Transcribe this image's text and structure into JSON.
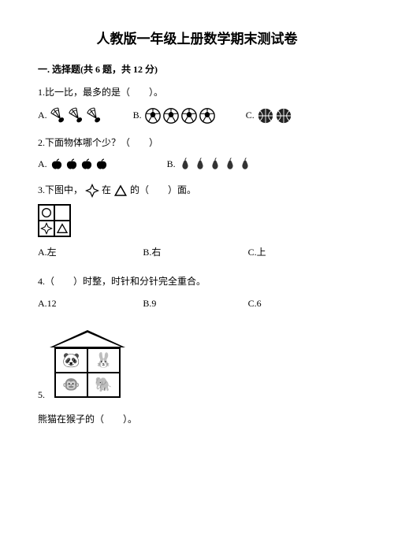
{
  "title": "人教版一年级上册数学期末测试卷",
  "section1": {
    "header": "一. 选择题(共 6 题，共 12 分)"
  },
  "q1": {
    "text": "1.比一比，最多的是（　　）。",
    "a_label": "A.",
    "b_label": "B.",
    "c_label": "C.",
    "shuttle_count": 3,
    "soccer_count": 4,
    "basketball_count": 2,
    "shuttle_color": "#000000",
    "soccer_fill": "#ffffff",
    "soccer_stroke": "#000000",
    "basketball_fill": "#222222",
    "icon_size": 22
  },
  "q2": {
    "text": "2.下面物体哪个少？（　　）",
    "a_label": "A.",
    "b_label": "B.",
    "apple_count": 4,
    "pear_count": 5,
    "apple_color": "#000000",
    "pear_color": "#333333",
    "icon_size": 18
  },
  "q3": {
    "text_pre": "3.下图中，",
    "text_mid": "在",
    "text_post": "的（　　）面。",
    "a_label": "A.左",
    "b_label": "B.右",
    "c_label": "C.上",
    "grid_tl": "circle",
    "grid_tr": "",
    "grid_bl": "star4",
    "grid_br": "triangle",
    "stroke": "#000000",
    "icon_size": 16
  },
  "q4": {
    "text": "4.（　　）时整，时针和分针完全重合。",
    "a_label": "A.12",
    "b_label": "B.9",
    "c_label": "C.6"
  },
  "q5": {
    "num": "5.",
    "panda": "🐼",
    "rabbit": "🐰",
    "monkey": "🐵",
    "elephant": "🐘",
    "text": "熊猫在猴子的（　　）。"
  }
}
